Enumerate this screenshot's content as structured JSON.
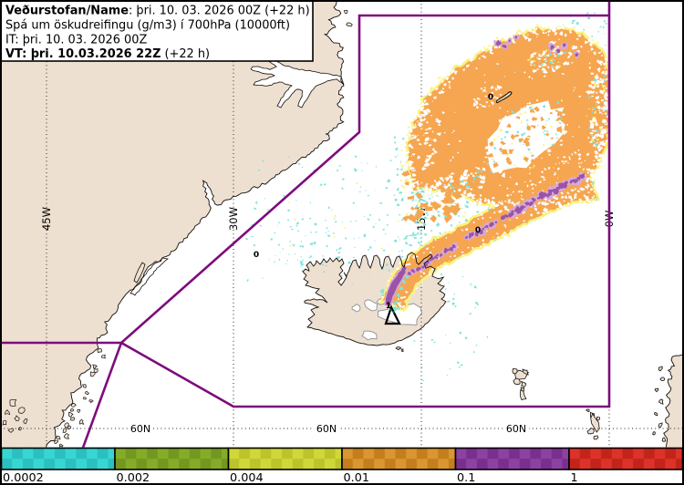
{
  "title": "Ash dispersion forecast map",
  "header": {
    "line1_bold": "Veðurstofan/Name",
    "line1_rest": ": þri. 10. 03. 2026 00Z (+22 h)",
    "line2": "Spá um öskudreifingu (g/m3) í 700hPa (10000ft)",
    "line3": "IT: þri. 10. 03. 2026 00Z",
    "line4_bold": "VT: þri. 10.03.2026 22Z",
    "line4_rest": " (+22 h)"
  },
  "graticule": {
    "meridian_labels": [
      "45W",
      "30W",
      "15W",
      "0W"
    ],
    "parallel_labels": [
      "60N",
      "60N",
      "60N"
    ]
  },
  "contours": {
    "zero": "0",
    "one": "1"
  },
  "colorbar": {
    "ticks": [
      "0.0002",
      "0.002",
      "0.004",
      "0.01",
      "0.1",
      "1"
    ],
    "units": "g/m3",
    "colors_light": [
      "#38d6d0",
      "#85ac29",
      "#cfd838",
      "#da9630",
      "#8b42a0",
      "#dc3228"
    ],
    "colors_dark": [
      "#2bbfc1",
      "#74981f",
      "#bcc42c",
      "#c47e1d",
      "#7a2f8e",
      "#c2241b"
    ]
  },
  "map": {
    "features": [
      "Greenland",
      "Iceland",
      "Jan Mayen",
      "Faroe Islands",
      "Shetland",
      "Norway coast"
    ],
    "volcano_marker": "triangle",
    "fir_boundary_color": "#7d0c7d",
    "ash_colors": {
      "low_cyan": "#7fe3dc",
      "mid_yellow": "#faf37d",
      "high_orange": "#f6a650",
      "very_high_purple": "#9c53a7"
    },
    "land_color": "#eee0d1"
  }
}
